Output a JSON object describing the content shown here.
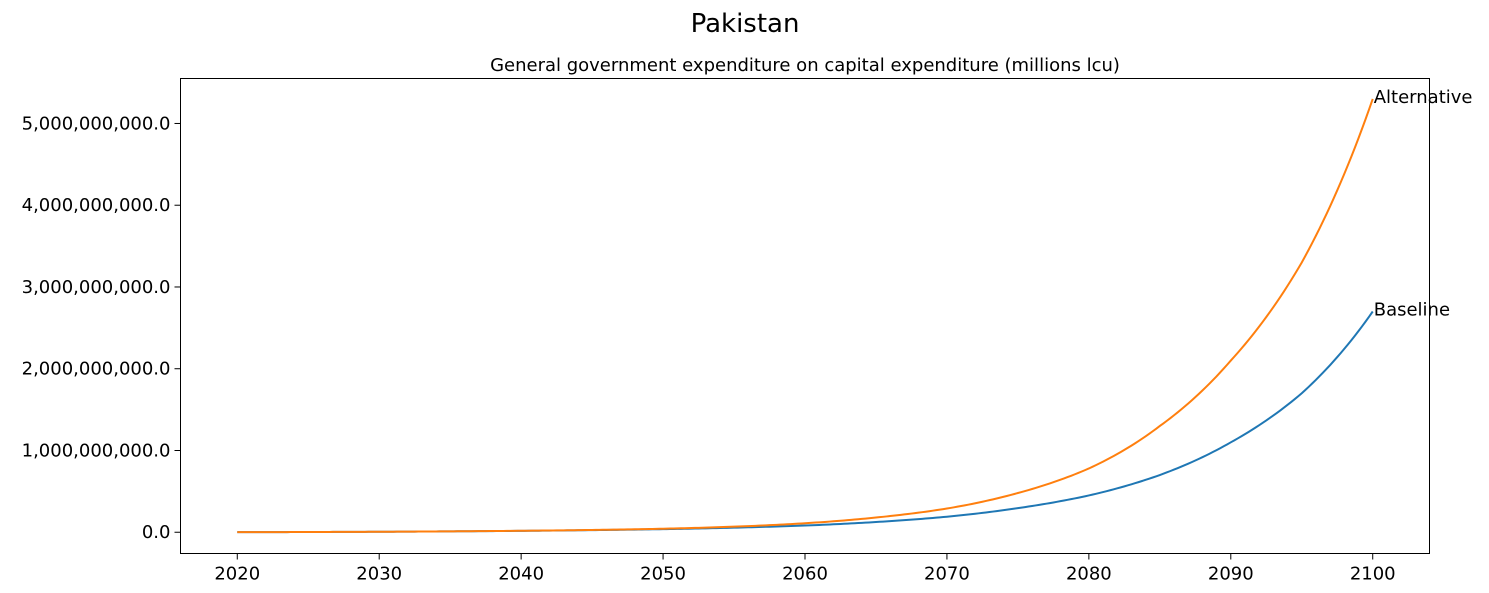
{
  "suptitle": "Pakistan",
  "chart_data": {
    "type": "line",
    "title": "General government expenditure on capital expenditure (millions lcu)",
    "xlabel": "",
    "ylabel": "",
    "xlim": [
      2016,
      2104
    ],
    "ylim": [
      -260000000,
      5550000000
    ],
    "x_ticks": [
      2020,
      2030,
      2040,
      2050,
      2060,
      2070,
      2080,
      2090,
      2100
    ],
    "x_tick_labels": [
      "2020",
      "2030",
      "2040",
      "2050",
      "2060",
      "2070",
      "2080",
      "2090",
      "2100"
    ],
    "y_ticks": [
      0,
      1000000000,
      2000000000,
      3000000000,
      4000000000,
      5000000000
    ],
    "y_tick_labels": [
      "0.0",
      "1,000,000,000.0",
      "2,000,000,000.0",
      "3,000,000,000.0",
      "4,000,000,000.0",
      "5,000,000,000.0"
    ],
    "grid": false,
    "legend": "none",
    "x": [
      2020,
      2025,
      2030,
      2035,
      2040,
      2045,
      2050,
      2055,
      2060,
      2065,
      2070,
      2075,
      2080,
      2085,
      2090,
      2095,
      2100
    ],
    "series": [
      {
        "name": "Baseline",
        "color": "#1f77b4",
        "values": [
          1000000,
          3000000,
          6000000,
          11000000,
          17000000,
          26000000,
          38000000,
          56000000,
          82000000,
          125000000,
          190000000,
          295000000,
          450000000,
          700000000,
          1100000000,
          1700000000,
          2700000000
        ]
      },
      {
        "name": "Alternative",
        "color": "#ff7f0e",
        "values": [
          1000000,
          3000000,
          6000000,
          11000000,
          18000000,
          28000000,
          43000000,
          68000000,
          110000000,
          180000000,
          290000000,
          480000000,
          780000000,
          1300000000,
          2100000000,
          3300000000,
          5300000000
        ]
      }
    ]
  }
}
